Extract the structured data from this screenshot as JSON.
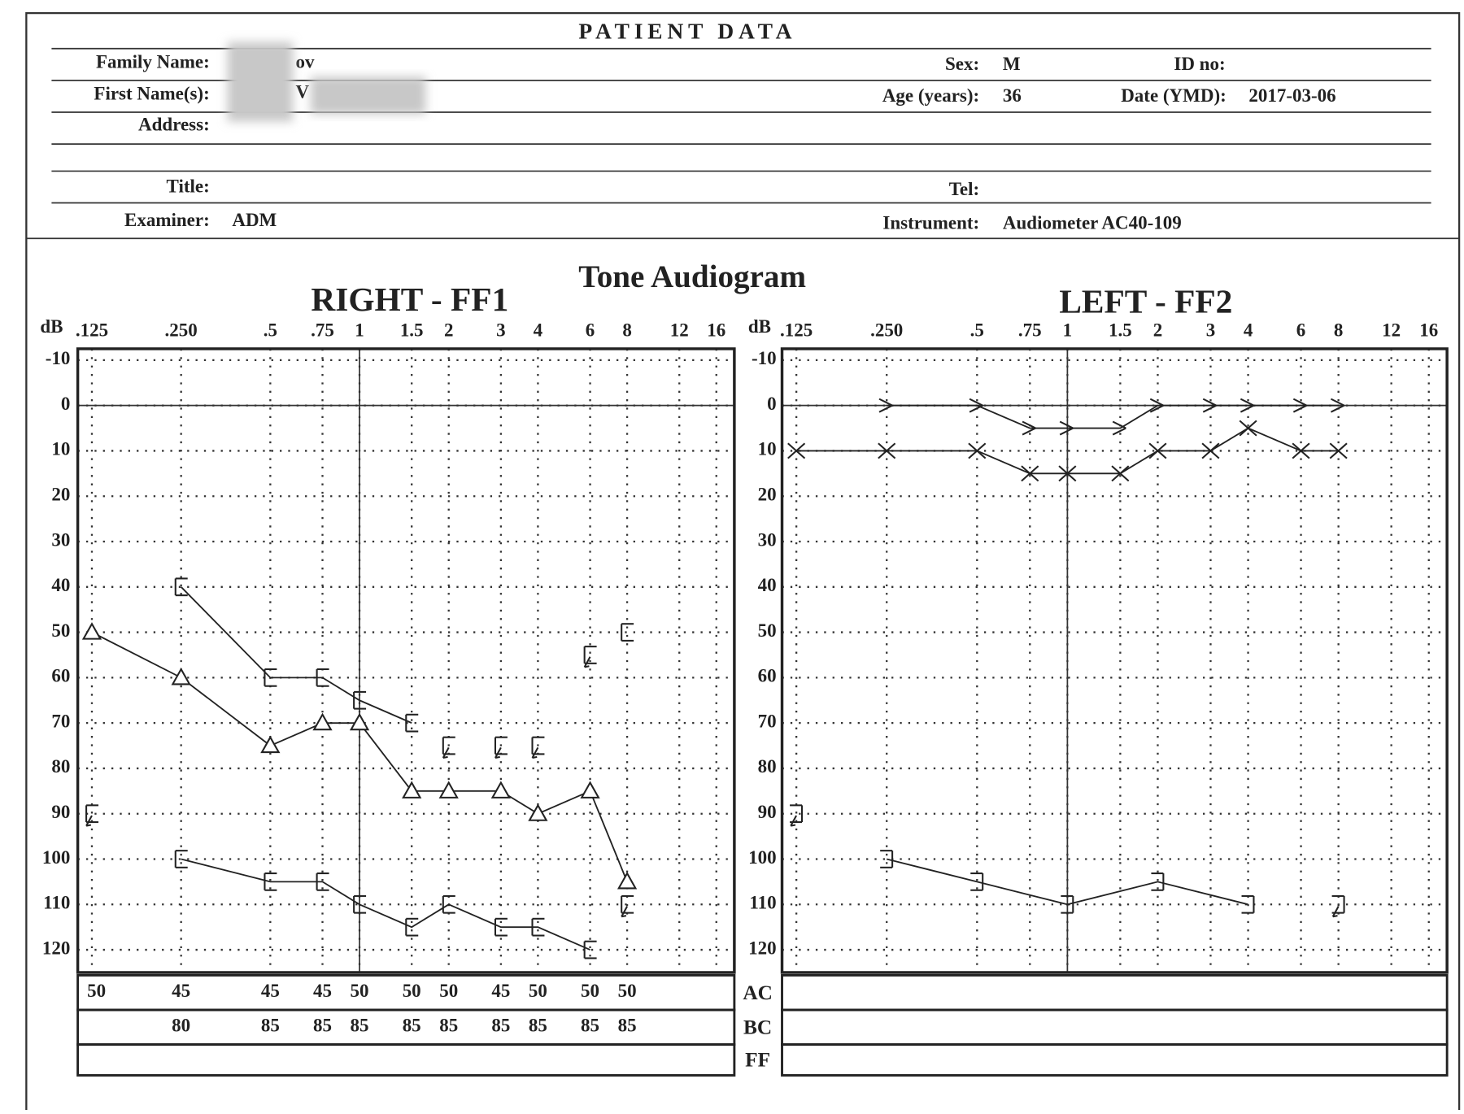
{
  "header": {
    "title": "PATIENT DATA",
    "family_name": {
      "label": "Family Name:",
      "value": "ov"
    },
    "sex": {
      "label": "Sex:",
      "value": "M"
    },
    "id_no": {
      "label": "ID no:"
    },
    "first_names": {
      "label": "First Name(s):",
      "value": "V"
    },
    "age": {
      "label": "Age (years):",
      "value": 36
    },
    "date": {
      "label": "Date (YMD):",
      "value": "2017-03-06"
    },
    "address": {
      "label": "Address:"
    },
    "person_title": {
      "label": "Title:"
    },
    "tel": {
      "label": "Tel:"
    },
    "examiner": {
      "label": "Examiner:",
      "value": "ADM"
    },
    "instrument": {
      "label": "Instrument:",
      "value": "Audiometer AC40-109"
    }
  },
  "main_title": "Tone Audiogram",
  "table_row_labels": [
    "AC",
    "BC",
    "FF"
  ],
  "chart_data": [
    {
      "type": "audiogram",
      "title": "RIGHT - FF1",
      "y_label": "dB",
      "x_log": true,
      "xlim": [
        0.112,
        18.4
      ],
      "xticks": [
        {
          "value": 0.125,
          "label": ".125"
        },
        {
          "value": 0.25,
          "label": ".250"
        },
        {
          "value": 0.5,
          "label": ".5"
        },
        {
          "value": 0.75,
          "label": ".75"
        },
        1,
        1.5,
        2,
        3,
        4,
        6,
        8,
        12,
        16
      ],
      "ylim": [
        125,
        -12.5
      ],
      "yticks": [
        -10,
        0,
        10,
        20,
        30,
        40,
        50,
        60,
        70,
        80,
        90,
        100,
        110,
        120
      ],
      "grid": true,
      "reference_x": 1,
      "reference_y": 0,
      "series": [
        {
          "marker": "triangle",
          "connected": true,
          "color": "#222222",
          "x": [
            0.125,
            0.25,
            0.5,
            0.75,
            1,
            1.5,
            2,
            3,
            4,
            6,
            8
          ],
          "values": [
            50,
            60,
            75,
            70,
            70,
            85,
            85,
            85,
            90,
            85,
            105
          ]
        },
        {
          "marker": "bracket-left",
          "connected": true,
          "color": "#222222",
          "x": [
            0.25,
            0.5,
            0.75,
            1,
            1.5
          ],
          "values": [
            40,
            60,
            60,
            65,
            70
          ]
        },
        {
          "marker": "bracket-left",
          "connected": false,
          "color": "#222222",
          "x": [
            8
          ],
          "values": [
            50
          ]
        },
        {
          "marker": "bracket-left",
          "connected": false,
          "no_response": true,
          "color": "#222222",
          "x": [
            0.125,
            2,
            3,
            4,
            6,
            8
          ],
          "values": [
            90,
            75,
            75,
            75,
            55,
            110
          ]
        },
        {
          "marker": "bracket-left",
          "connected": true,
          "color": "#222222",
          "x": [
            0.25,
            0.5,
            0.75,
            1,
            1.5,
            2,
            3,
            4,
            6
          ],
          "values": [
            100,
            105,
            105,
            110,
            115,
            110,
            115,
            115,
            120
          ]
        }
      ],
      "table_rows": [
        {
          "x": [
            0.125,
            0.25,
            0.5,
            0.75,
            1,
            1.5,
            2,
            3,
            4,
            6,
            8
          ],
          "values": [
            50,
            45,
            45,
            45,
            50,
            50,
            50,
            45,
            50,
            50,
            50
          ]
        },
        {
          "x": [
            0.25,
            0.5,
            0.75,
            1,
            1.5,
            2,
            3,
            4,
            6,
            8
          ],
          "values": [
            80,
            85,
            85,
            85,
            85,
            85,
            85,
            85,
            85,
            85
          ]
        }
      ]
    },
    {
      "type": "audiogram",
      "title": "LEFT - FF2",
      "y_label": "dB",
      "x_log": true,
      "xlim": [
        0.112,
        18.4
      ],
      "xticks": [
        {
          "value": 0.125,
          "label": ".125"
        },
        {
          "value": 0.25,
          "label": ".250"
        },
        {
          "value": 0.5,
          "label": ".5"
        },
        {
          "value": 0.75,
          "label": ".75"
        },
        1,
        1.5,
        2,
        3,
        4,
        6,
        8,
        12,
        16
      ],
      "ylim": [
        125,
        -12.5
      ],
      "yticks": [
        -10,
        0,
        10,
        20,
        30,
        40,
        50,
        60,
        70,
        80,
        90,
        100,
        110,
        120
      ],
      "grid": true,
      "reference_x": 1,
      "reference_y": 0,
      "series": [
        {
          "marker": "chevron",
          "connected": true,
          "color": "#222222",
          "x": [
            0.25,
            0.5,
            0.75,
            1,
            1.5,
            2,
            3,
            4,
            6,
            8
          ],
          "values": [
            0,
            0,
            5,
            5,
            5,
            0,
            0,
            0,
            0,
            0
          ]
        },
        {
          "marker": "cross",
          "connected": true,
          "color": "#222222",
          "x": [
            0.125,
            0.25,
            0.5,
            0.75,
            1,
            1.5,
            2,
            3,
            4,
            6,
            8
          ],
          "values": [
            10,
            10,
            10,
            15,
            15,
            15,
            10,
            10,
            5,
            10,
            10
          ]
        },
        {
          "marker": "bracket-right",
          "connected": true,
          "color": "#222222",
          "x": [
            0.25,
            0.5,
            1,
            2,
            4
          ],
          "values": [
            100,
            105,
            110,
            105,
            110
          ]
        },
        {
          "marker": "bracket-right",
          "connected": false,
          "no_response": true,
          "color": "#222222",
          "x": [
            0.125,
            8
          ],
          "values": [
            90,
            110
          ]
        }
      ],
      "table_rows": []
    }
  ]
}
